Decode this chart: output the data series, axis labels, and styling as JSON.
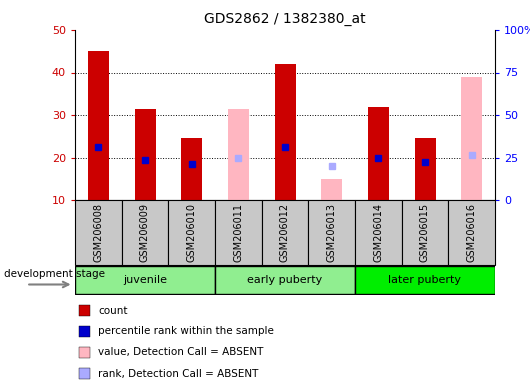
{
  "title": "GDS2862 / 1382380_at",
  "samples": [
    "GSM206008",
    "GSM206009",
    "GSM206010",
    "GSM206011",
    "GSM206012",
    "GSM206013",
    "GSM206014",
    "GSM206015",
    "GSM206016"
  ],
  "count_values": [
    45,
    31.5,
    24.5,
    null,
    42,
    null,
    32,
    24.5,
    null
  ],
  "count_absent_values": [
    null,
    null,
    null,
    31.5,
    null,
    15,
    null,
    null,
    39
  ],
  "rank_values": [
    22.5,
    19.5,
    18.5,
    null,
    22.5,
    null,
    20,
    19,
    null
  ],
  "rank_absent_values": [
    null,
    null,
    null,
    20,
    null,
    18,
    null,
    null,
    20.5
  ],
  "ylim": [
    10,
    50
  ],
  "yticks": [
    10,
    20,
    30,
    40,
    50
  ],
  "right_yticks": [
    0,
    25,
    50,
    75,
    100
  ],
  "right_ytick_labels": [
    "0",
    "25",
    "50",
    "75",
    "100%"
  ],
  "bar_width": 0.45,
  "count_color": "#CC0000",
  "count_absent_color": "#FFB6C1",
  "rank_color": "#0000CC",
  "rank_absent_color": "#AAAAFF",
  "plot_bg_color": "#FFFFFF",
  "sample_box_color": "#C8C8C8",
  "groups_info": [
    {
      "start": 0,
      "end": 3,
      "label": "juvenile",
      "color": "#90EE90"
    },
    {
      "start": 3,
      "end": 6,
      "label": "early puberty",
      "color": "#90EE90"
    },
    {
      "start": 6,
      "end": 9,
      "label": "later puberty",
      "color": "#00EE00"
    }
  ],
  "legend_items": [
    {
      "label": "count",
      "color": "#CC0000"
    },
    {
      "label": "percentile rank within the sample",
      "color": "#0000CC"
    },
    {
      "label": "value, Detection Call = ABSENT",
      "color": "#FFB6C1"
    },
    {
      "label": "rank, Detection Call = ABSENT",
      "color": "#AAAAFF"
    }
  ],
  "dev_stage_label": "development stage"
}
